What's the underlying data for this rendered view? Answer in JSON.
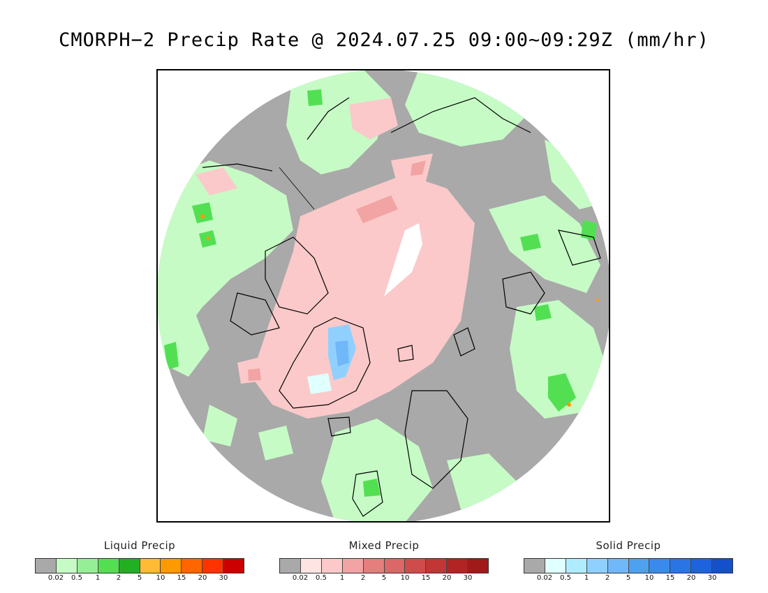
{
  "title": "CMORPH−2 Precip Rate @ 2024.07.25 09:00~09:29Z (mm/hr)",
  "map": {
    "projection": "north-polar-stereographic",
    "background_no_precip_color": "#a9a9a9",
    "outside_color": "#ffffff",
    "coastline_color": "#000000"
  },
  "legends": [
    {
      "id": "liquid",
      "title": "Liquid Precip",
      "colors": [
        "#a9a9a9",
        "#c6fbc6",
        "#96ee96",
        "#52e052",
        "#22b022",
        "#ffbb33",
        "#ff9900",
        "#ff6600",
        "#ff3300",
        "#cc0000"
      ],
      "labels": [
        "0.02",
        "0.5",
        "1",
        "2",
        "5",
        "10",
        "15",
        "20",
        "30"
      ]
    },
    {
      "id": "mixed",
      "title": "Mixed Precip",
      "colors": [
        "#a9a9a9",
        "#ffe4e4",
        "#fbc9c9",
        "#f2a3a3",
        "#e67e7e",
        "#dd6666",
        "#d04c4c",
        "#c23636",
        "#b22424",
        "#a01a1a"
      ],
      "labels": [
        "0.02",
        "0.5",
        "1",
        "2",
        "5",
        "10",
        "15",
        "20",
        "30"
      ]
    },
    {
      "id": "solid",
      "title": "Solid Precip",
      "colors": [
        "#a9a9a9",
        "#e0ffff",
        "#b0ecff",
        "#90d0ff",
        "#70b8f8",
        "#50a0f0",
        "#3a8aee",
        "#2a74e6",
        "#1f62dd",
        "#1550cc"
      ],
      "labels": [
        "0.02",
        "0.5",
        "1",
        "2",
        "5",
        "10",
        "15",
        "20",
        "30"
      ]
    }
  ]
}
